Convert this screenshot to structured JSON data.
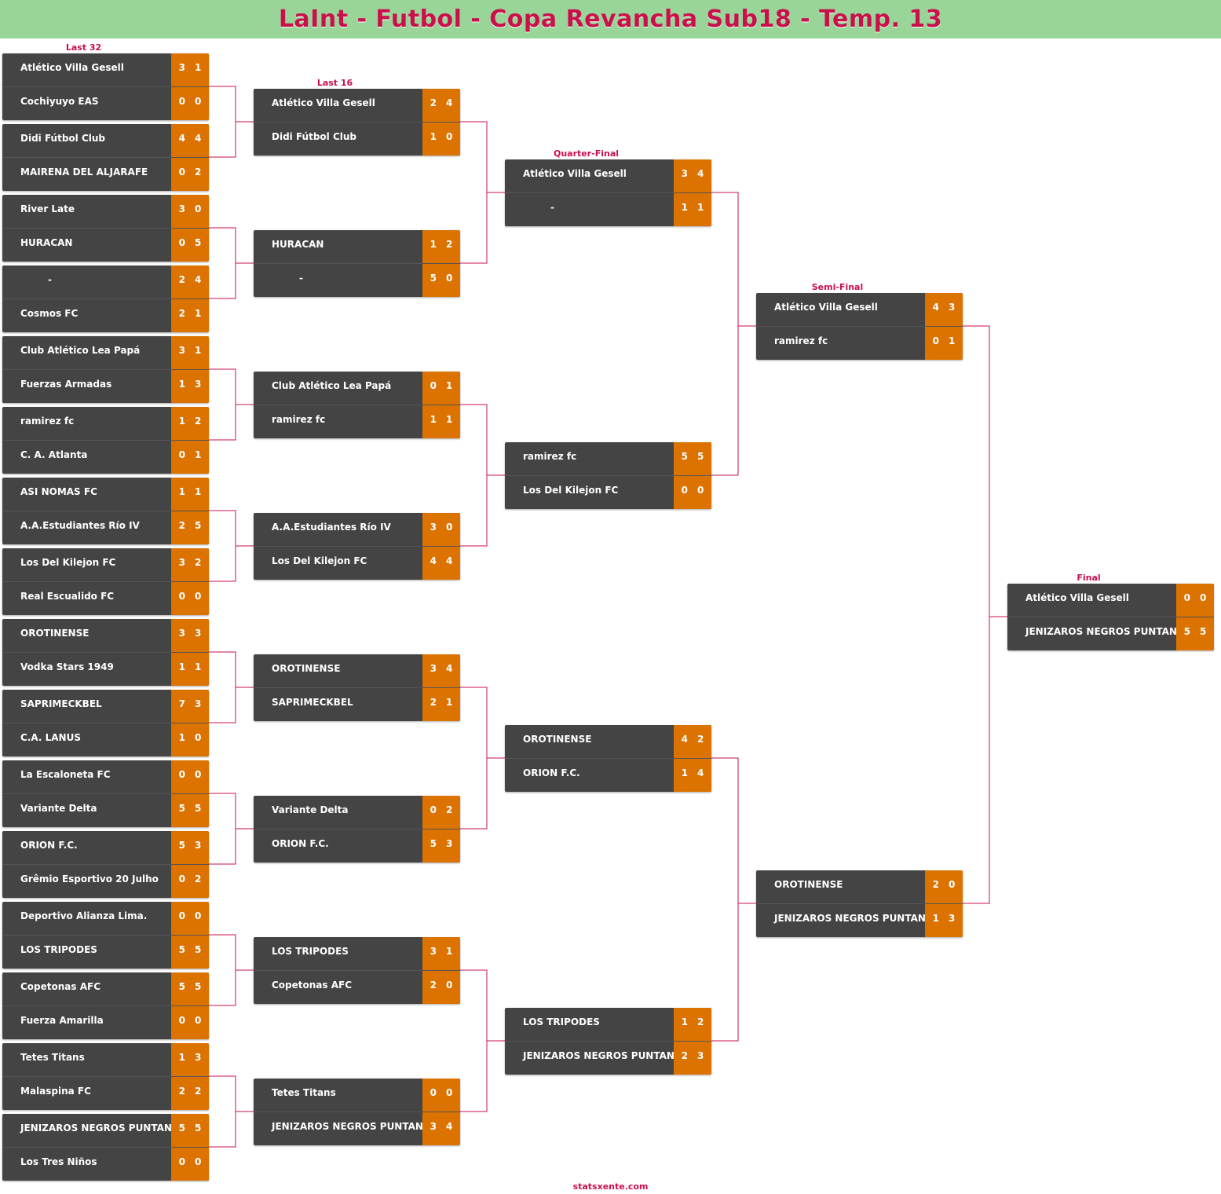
{
  "title": "LaInt - Futbol - Copa Revancha Sub18 - Temp. 13",
  "footer": "statsxente.com",
  "colors": {
    "accent": "#c8104a",
    "header_bg": "#99d599",
    "team_bg": "#444444",
    "score_bg": "#dc7200",
    "connector": "#c8104a"
  },
  "rounds": [
    {
      "name": "Last 32",
      "matches": [
        [
          {
            "name": "Atlético Villa Gesell",
            "s1": "3",
            "s2": "1"
          },
          {
            "name": "Cochiyuyo EAS",
            "s1": "0",
            "s2": "0"
          }
        ],
        [
          {
            "name": "Didi Fútbol Club",
            "s1": "4",
            "s2": "4"
          },
          {
            "name": "MAIRENA DEL ALJARAFE",
            "s1": "0",
            "s2": "2"
          }
        ],
        [
          {
            "name": "River Late",
            "s1": "3",
            "s2": "0"
          },
          {
            "name": "HURACAN",
            "s1": "0",
            "s2": "5"
          }
        ],
        [
          {
            "name": "-",
            "s1": "2",
            "s2": "4"
          },
          {
            "name": "Cosmos FC",
            "s1": "2",
            "s2": "1"
          }
        ],
        [
          {
            "name": "Club Atlético Lea Papá",
            "s1": "3",
            "s2": "1"
          },
          {
            "name": "Fuerzas Armadas",
            "s1": "1",
            "s2": "3"
          }
        ],
        [
          {
            "name": "ramirez fc",
            "s1": "1",
            "s2": "2"
          },
          {
            "name": "C. A. Atlanta",
            "s1": "0",
            "s2": "1"
          }
        ],
        [
          {
            "name": "ASI NOMAS FC",
            "s1": "1",
            "s2": "1"
          },
          {
            "name": "A.A.Estudiantes Río IV",
            "s1": "2",
            "s2": "5"
          }
        ],
        [
          {
            "name": "Los Del Kilejon FC",
            "s1": "3",
            "s2": "2"
          },
          {
            "name": "Real Escualido FC",
            "s1": "0",
            "s2": "0"
          }
        ],
        [
          {
            "name": "OROTINENSE",
            "s1": "3",
            "s2": "3"
          },
          {
            "name": "Vodka Stars 1949",
            "s1": "1",
            "s2": "1"
          }
        ],
        [
          {
            "name": "SAPRIMECKBEL",
            "s1": "7",
            "s2": "3"
          },
          {
            "name": "C.A. LANUS",
            "s1": "1",
            "s2": "0"
          }
        ],
        [
          {
            "name": "La Escaloneta FC",
            "s1": "0",
            "s2": "0"
          },
          {
            "name": "Variante Delta",
            "s1": "5",
            "s2": "5"
          }
        ],
        [
          {
            "name": "ORION F.C.",
            "s1": "5",
            "s2": "3"
          },
          {
            "name": "Grêmio Esportivo 20 Julho",
            "s1": "0",
            "s2": "2"
          }
        ],
        [
          {
            "name": "Deportivo Alianza Lima.",
            "s1": "0",
            "s2": "0"
          },
          {
            "name": "LOS TRIPODES",
            "s1": "5",
            "s2": "5"
          }
        ],
        [
          {
            "name": "Copetonas AFC",
            "s1": "5",
            "s2": "5"
          },
          {
            "name": "Fuerza Amarilla",
            "s1": "0",
            "s2": "0"
          }
        ],
        [
          {
            "name": "Tetes Titans",
            "s1": "1",
            "s2": "3"
          },
          {
            "name": "Malaspina FC",
            "s1": "2",
            "s2": "2"
          }
        ],
        [
          {
            "name": "JENIZAROS NEGROS PUNTANOS",
            "s1": "5",
            "s2": "5"
          },
          {
            "name": "Los Tres Niños",
            "s1": "0",
            "s2": "0"
          }
        ]
      ]
    },
    {
      "name": "Last 16",
      "matches": [
        [
          {
            "name": "Atlético Villa Gesell",
            "s1": "2",
            "s2": "4"
          },
          {
            "name": "Didi Fútbol Club",
            "s1": "1",
            "s2": "0"
          }
        ],
        [
          {
            "name": "HURACAN",
            "s1": "1",
            "s2": "2"
          },
          {
            "name": "-",
            "s1": "5",
            "s2": "0"
          }
        ],
        [
          {
            "name": "Club Atlético Lea Papá",
            "s1": "0",
            "s2": "1"
          },
          {
            "name": "ramirez fc",
            "s1": "1",
            "s2": "1"
          }
        ],
        [
          {
            "name": "A.A.Estudiantes Río IV",
            "s1": "3",
            "s2": "0"
          },
          {
            "name": "Los Del Kilejon FC",
            "s1": "4",
            "s2": "4"
          }
        ],
        [
          {
            "name": "OROTINENSE",
            "s1": "3",
            "s2": "4"
          },
          {
            "name": "SAPRIMECKBEL",
            "s1": "2",
            "s2": "1"
          }
        ],
        [
          {
            "name": "Variante Delta",
            "s1": "0",
            "s2": "2"
          },
          {
            "name": "ORION F.C.",
            "s1": "5",
            "s2": "3"
          }
        ],
        [
          {
            "name": "LOS TRIPODES",
            "s1": "3",
            "s2": "1"
          },
          {
            "name": "Copetonas AFC",
            "s1": "2",
            "s2": "0"
          }
        ],
        [
          {
            "name": "Tetes Titans",
            "s1": "0",
            "s2": "0"
          },
          {
            "name": "JENIZAROS NEGROS PUNTANOS",
            "s1": "3",
            "s2": "4"
          }
        ]
      ]
    },
    {
      "name": "Quarter-Final",
      "matches": [
        [
          {
            "name": "Atlético Villa Gesell",
            "s1": "3",
            "s2": "4"
          },
          {
            "name": "-",
            "s1": "1",
            "s2": "1"
          }
        ],
        [
          {
            "name": "ramirez fc",
            "s1": "5",
            "s2": "5"
          },
          {
            "name": "Los Del Kilejon FC",
            "s1": "0",
            "s2": "0"
          }
        ],
        [
          {
            "name": "OROTINENSE",
            "s1": "4",
            "s2": "2"
          },
          {
            "name": "ORION F.C.",
            "s1": "1",
            "s2": "4"
          }
        ],
        [
          {
            "name": "LOS TRIPODES",
            "s1": "1",
            "s2": "2"
          },
          {
            "name": "JENIZAROS NEGROS PUNTANOS",
            "s1": "2",
            "s2": "3"
          }
        ]
      ]
    },
    {
      "name": "Semi-Final",
      "matches": [
        [
          {
            "name": "Atlético Villa Gesell",
            "s1": "4",
            "s2": "3"
          },
          {
            "name": "ramirez fc",
            "s1": "0",
            "s2": "1"
          }
        ],
        [
          {
            "name": "OROTINENSE",
            "s1": "2",
            "s2": "0"
          },
          {
            "name": "JENIZAROS NEGROS PUNTANOS",
            "s1": "1",
            "s2": "3"
          }
        ]
      ]
    },
    {
      "name": "Final",
      "matches": [
        [
          {
            "name": "Atlético Villa Gesell",
            "s1": "0",
            "s2": "0"
          },
          {
            "name": "JENIZAROS NEGROS PUNTANOS",
            "s1": "5",
            "s2": "5"
          }
        ]
      ]
    }
  ]
}
